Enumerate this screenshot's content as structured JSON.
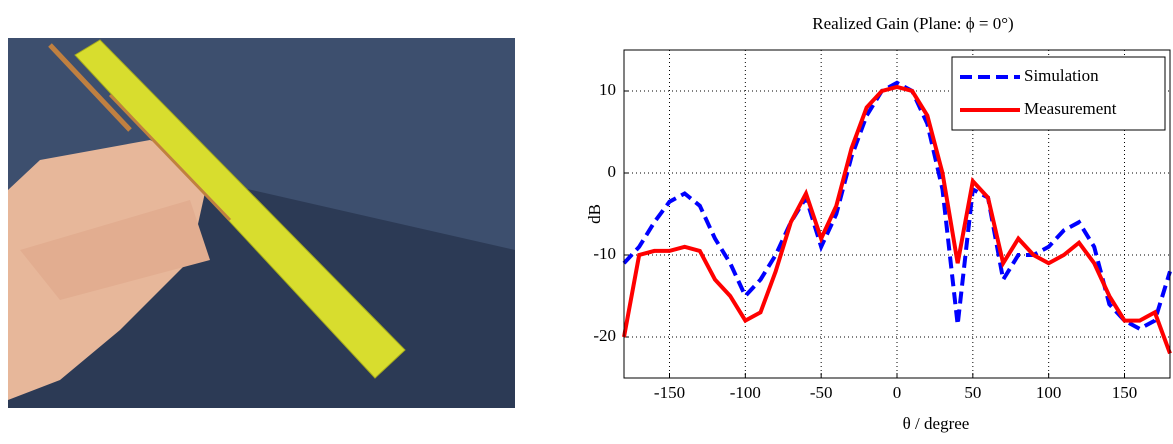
{
  "chart_data": {
    "type": "line",
    "title": "Realized Gain (Plane: ϕ = 0°)",
    "x_label": "θ / degree",
    "y_label": "dB",
    "x": [
      -180,
      -170,
      -160,
      -150,
      -140,
      -130,
      -120,
      -110,
      -100,
      -90,
      -80,
      -70,
      -60,
      -50,
      -40,
      -30,
      -20,
      -10,
      0,
      10,
      20,
      30,
      40,
      50,
      60,
      70,
      80,
      90,
      100,
      110,
      120,
      130,
      140,
      150,
      160,
      170,
      180
    ],
    "series": [
      {
        "name": "Simulation",
        "color": "#0000ff",
        "dashed": true,
        "values": [
          -11,
          -9,
          -6,
          -3.5,
          -2.5,
          -4,
          -8,
          -11,
          -15,
          -13,
          -10,
          -6,
          -3,
          -9,
          -5,
          2,
          7,
          10,
          11,
          10,
          6,
          -2,
          -18.5,
          -2,
          -3,
          -13,
          -10,
          -10,
          -9,
          -7,
          -6,
          -9,
          -16,
          -18,
          -19,
          -18,
          -12
        ]
      },
      {
        "name": "Measurement",
        "color": "#ff0000",
        "dashed": false,
        "values": [
          -20,
          -10,
          -9.5,
          -9.5,
          -9,
          -9.5,
          -13,
          -15,
          -18,
          -17,
          -12,
          -6,
          -2.5,
          -8,
          -4,
          3,
          8,
          10,
          10.5,
          10,
          7,
          0,
          -11,
          -1,
          -3,
          -11,
          -8,
          -10,
          -11,
          -10,
          -8.5,
          -11,
          -15,
          -18,
          -18,
          -17,
          -22
        ]
      }
    ],
    "xlim": [
      -180,
      180
    ],
    "xticks": [
      -150,
      -100,
      -50,
      0,
      50,
      100,
      150
    ],
    "ylim": [
      -25,
      15
    ],
    "yticks": [
      -20,
      -10,
      0,
      10
    ],
    "grid": true,
    "legend": "upper-right"
  }
}
